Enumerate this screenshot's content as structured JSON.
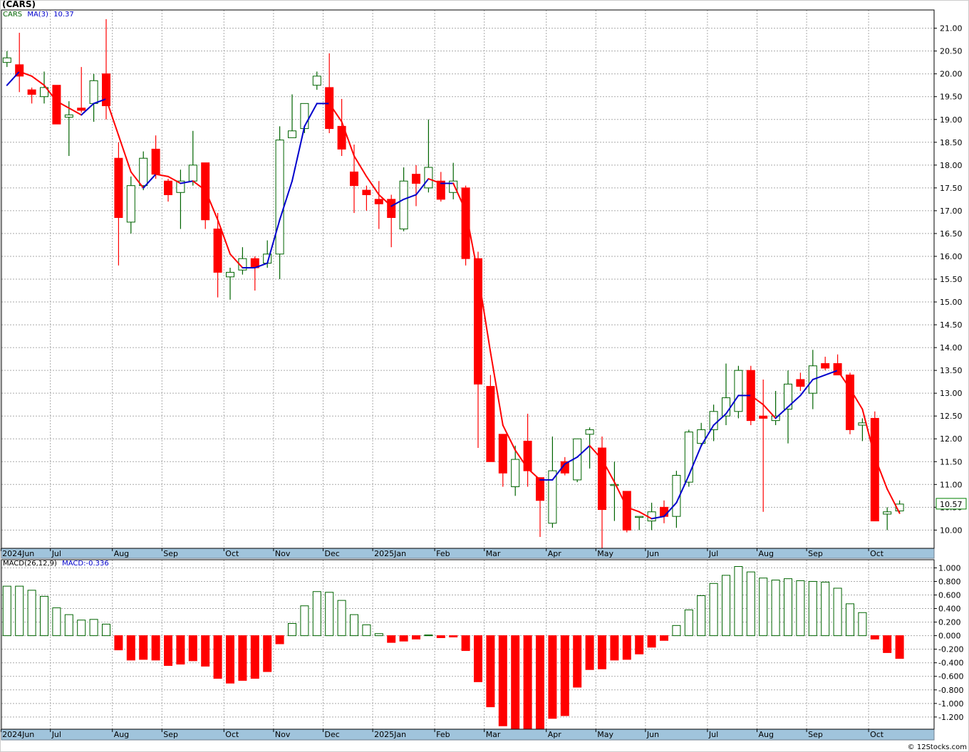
{
  "page": {
    "title": "(CARS)",
    "credit": "© 12Stocks.com"
  },
  "legend": {
    "symbol": "CARS",
    "ma_label": "MA(3)",
    "ma_value": "10.37",
    "macd_label": "MACD(26,12,9)",
    "macd_value": "MACD:-0.336"
  },
  "last_price_label": "10.57",
  "colors": {
    "up_candle_border": "#006400",
    "down_candle": "#ff0000",
    "ma_down": "#ff0000",
    "ma_up": "#0000cc",
    "macd_pos": "#006400",
    "macd_neg": "#ff0000",
    "grid": "#aaaaaa",
    "axis_bar": "#a0c4dc",
    "price_label_border": "#008000"
  },
  "chart_data": [
    {
      "type": "candlestick",
      "title": "(CARS)",
      "interval": "weekly",
      "grid": true,
      "ylim": [
        9.6,
        21.4
      ],
      "yticks": [
        "10.00",
        "10.50",
        "11.00",
        "11.50",
        "12.00",
        "12.50",
        "13.00",
        "13.50",
        "14.00",
        "14.50",
        "15.00",
        "15.50",
        "16.00",
        "16.50",
        "17.00",
        "17.50",
        "18.00",
        "18.50",
        "19.00",
        "19.50",
        "20.00",
        "20.50",
        "21.00"
      ],
      "x_labels": [
        "2024Jun",
        "Jul",
        "Aug",
        "Sep",
        "Oct",
        "Nov",
        "Dec",
        "2025Jan",
        "Feb",
        "Mar",
        "Apr",
        "May",
        "Jun",
        "Jul",
        "Aug",
        "Sep",
        "Oct"
      ],
      "x_label_week_index": [
        0,
        4,
        9,
        13,
        18,
        22,
        26,
        30,
        35,
        39,
        44,
        48,
        52,
        57,
        61,
        65,
        70
      ],
      "series": [
        {
          "name": "CARS",
          "candles": [
            [
              20.25,
              20.5,
              20.15,
              20.35
            ],
            [
              20.2,
              20.9,
              19.6,
              19.95
            ],
            [
              19.65,
              19.7,
              19.35,
              19.55
            ],
            [
              19.5,
              20.05,
              19.35,
              19.7
            ],
            [
              19.75,
              19.75,
              18.9,
              18.9
            ],
            [
              19.05,
              19.4,
              18.2,
              19.1
            ],
            [
              19.25,
              20.15,
              19.15,
              19.2
            ],
            [
              19.35,
              20.0,
              18.95,
              19.85
            ],
            [
              20.0,
              21.2,
              19.0,
              19.3
            ],
            [
              18.15,
              18.5,
              15.8,
              16.85
            ],
            [
              16.75,
              17.75,
              16.5,
              17.55
            ],
            [
              17.55,
              18.3,
              17.45,
              18.15
            ],
            [
              18.35,
              18.65,
              17.7,
              17.8
            ],
            [
              17.65,
              17.7,
              17.2,
              17.35
            ],
            [
              17.4,
              17.9,
              16.6,
              17.65
            ],
            [
              17.65,
              18.75,
              17.55,
              18.0
            ],
            [
              18.05,
              18.05,
              16.6,
              16.8
            ],
            [
              16.6,
              16.95,
              15.1,
              15.65
            ],
            [
              15.55,
              15.75,
              15.05,
              15.65
            ],
            [
              15.7,
              16.2,
              15.6,
              15.95
            ],
            [
              15.95,
              16.0,
              15.25,
              15.75
            ],
            [
              15.85,
              16.35,
              15.75,
              16.05
            ],
            [
              16.05,
              18.85,
              15.5,
              18.55
            ],
            [
              18.6,
              19.55,
              18.6,
              18.75
            ],
            [
              18.8,
              19.35,
              18.7,
              19.35
            ],
            [
              19.75,
              20.05,
              19.65,
              19.95
            ],
            [
              19.7,
              20.45,
              18.7,
              18.8
            ],
            [
              18.85,
              19.45,
              18.2,
              18.35
            ],
            [
              17.85,
              18.45,
              16.95,
              17.55
            ],
            [
              17.45,
              17.55,
              17.0,
              17.35
            ],
            [
              17.25,
              17.65,
              16.6,
              17.15
            ],
            [
              17.25,
              17.35,
              16.2,
              16.85
            ],
            [
              16.6,
              17.95,
              16.55,
              17.65
            ],
            [
              17.8,
              18.0,
              17.1,
              17.6
            ],
            [
              17.5,
              19.0,
              17.4,
              17.95
            ],
            [
              17.65,
              17.85,
              17.2,
              17.25
            ],
            [
              17.4,
              18.05,
              17.25,
              17.65
            ],
            [
              17.5,
              17.55,
              15.8,
              15.95
            ],
            [
              15.95,
              16.1,
              11.8,
              13.2
            ],
            [
              13.15,
              13.4,
              11.6,
              11.5
            ],
            [
              12.1,
              12.1,
              10.95,
              11.25
            ],
            [
              10.95,
              11.85,
              10.75,
              11.55
            ],
            [
              11.95,
              12.55,
              10.95,
              11.3
            ],
            [
              11.15,
              11.15,
              9.85,
              10.65
            ],
            [
              10.15,
              12.05,
              10.05,
              11.3
            ],
            [
              11.5,
              11.6,
              11.2,
              11.25
            ],
            [
              11.1,
              12.0,
              11.05,
              12.0
            ],
            [
              12.1,
              12.25,
              11.35,
              12.2
            ],
            [
              11.8,
              12.05,
              9.55,
              10.45
            ],
            [
              11.0,
              11.5,
              10.2,
              11.0
            ],
            [
              10.85,
              10.85,
              9.95,
              10.0
            ],
            [
              10.3,
              10.3,
              10.0,
              10.3
            ],
            [
              10.2,
              10.6,
              10.0,
              10.4
            ],
            [
              10.5,
              10.65,
              10.15,
              10.3
            ],
            [
              10.3,
              11.3,
              10.05,
              11.2
            ],
            [
              11.05,
              12.2,
              10.95,
              12.15
            ],
            [
              11.9,
              12.35,
              11.85,
              12.2
            ],
            [
              12.2,
              12.75,
              11.95,
              12.6
            ],
            [
              12.5,
              13.65,
              12.3,
              12.9
            ],
            [
              12.6,
              13.6,
              12.45,
              13.5
            ],
            [
              13.5,
              13.6,
              12.3,
              12.4
            ],
            [
              12.5,
              13.3,
              10.4,
              12.45
            ],
            [
              12.4,
              13.05,
              12.3,
              12.5
            ],
            [
              12.65,
              13.5,
              11.9,
              13.2
            ],
            [
              13.3,
              13.45,
              13.05,
              13.15
            ],
            [
              13.0,
              13.95,
              12.65,
              13.6
            ],
            [
              13.65,
              13.8,
              13.5,
              13.55
            ],
            [
              13.65,
              13.85,
              13.4,
              13.4
            ],
            [
              13.4,
              13.45,
              12.1,
              12.2
            ],
            [
              12.3,
              12.45,
              11.95,
              12.35
            ],
            [
              12.45,
              12.6,
              10.2,
              10.2
            ],
            [
              10.35,
              10.5,
              10.0,
              10.4
            ],
            [
              10.42,
              10.65,
              10.4,
              10.57
            ]
          ]
        },
        {
          "name": "MA(3)",
          "values": [
            19.75,
            20.05,
            19.95,
            19.75,
            19.4,
            19.25,
            19.1,
            19.35,
            19.45,
            18.65,
            17.85,
            17.5,
            17.8,
            17.75,
            17.6,
            17.65,
            17.45,
            16.8,
            16.05,
            15.75,
            15.75,
            15.85,
            16.8,
            17.65,
            18.85,
            19.35,
            19.35,
            18.95,
            18.2,
            17.75,
            17.35,
            17.1,
            17.25,
            17.35,
            17.7,
            17.6,
            17.6,
            17.0,
            15.6,
            13.9,
            12.3,
            11.75,
            11.35,
            11.1,
            11.1,
            11.45,
            11.6,
            11.85,
            11.55,
            11.05,
            10.5,
            10.4,
            10.25,
            10.3,
            10.6,
            11.2,
            11.85,
            12.3,
            12.55,
            12.95,
            12.95,
            12.75,
            12.45,
            12.7,
            12.95,
            13.3,
            13.4,
            13.5,
            13.1,
            12.65,
            11.6,
            10.9,
            10.37
          ]
        }
      ]
    },
    {
      "type": "bar",
      "title": "MACD(26,12,9)",
      "grid": true,
      "ylim": [
        -1.38,
        1.12
      ],
      "yticks": [
        "1.000",
        "0.800",
        "0.600",
        "0.400",
        "0.200",
        "0.000",
        "-0.200",
        "-0.400",
        "-0.600",
        "-0.800",
        "-1.000",
        "-1.200"
      ],
      "x_labels": [
        "2024Jun",
        "Jul",
        "Aug",
        "Sep",
        "Oct",
        "Nov",
        "Dec",
        "2025Jan",
        "Feb",
        "Mar",
        "Apr",
        "May",
        "Jun",
        "Jul",
        "Aug",
        "Sep",
        "Oct"
      ],
      "series": [
        {
          "name": "MACD",
          "values": [
            0.73,
            0.73,
            0.67,
            0.58,
            0.41,
            0.31,
            0.23,
            0.24,
            0.17,
            -0.21,
            -0.36,
            -0.35,
            -0.36,
            -0.44,
            -0.42,
            -0.37,
            -0.45,
            -0.63,
            -0.7,
            -0.66,
            -0.63,
            -0.53,
            -0.12,
            0.18,
            0.44,
            0.65,
            0.64,
            0.52,
            0.31,
            0.16,
            0.03,
            -0.1,
            -0.08,
            -0.05,
            0.01,
            -0.03,
            -0.02,
            -0.22,
            -0.68,
            -1.05,
            -1.33,
            -1.38,
            -1.38,
            -1.38,
            -1.22,
            -1.18,
            -0.76,
            -0.5,
            -0.49,
            -0.36,
            -0.35,
            -0.27,
            -0.17,
            -0.07,
            0.15,
            0.38,
            0.59,
            0.77,
            0.89,
            1.02,
            0.94,
            0.85,
            0.82,
            0.84,
            0.81,
            0.8,
            0.79,
            0.7,
            0.47,
            0.34,
            -0.05,
            -0.25,
            -0.336
          ]
        }
      ]
    }
  ]
}
